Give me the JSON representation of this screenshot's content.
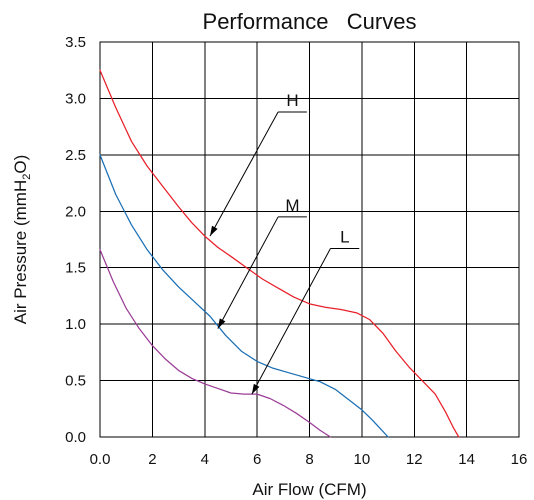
{
  "chart_data": {
    "type": "line",
    "title": "Performance   Curves",
    "xlabel": "Air Flow (CFM)",
    "ylabel": {
      "prefix": "Air Pressure (mmH",
      "subscript": "2",
      "suffix": "O)"
    },
    "xlim": [
      0,
      16
    ],
    "ylim": [
      0,
      3.5
    ],
    "x_ticks": [
      "0.0",
      "2",
      "4",
      "6",
      "8",
      "10",
      "12",
      "14",
      "16"
    ],
    "y_ticks": [
      "0.0",
      "0.5",
      "1.0",
      "1.5",
      "2.0",
      "2.5",
      "3.0",
      "3.5"
    ],
    "grid": true,
    "series": [
      {
        "name": "H",
        "color": "#e8202a",
        "x": [
          0,
          0.6,
          1.2,
          1.8,
          2.4,
          3.0,
          3.5,
          4.0,
          4.5,
          5.0,
          5.6,
          6.2,
          6.8,
          7.4,
          8.0,
          8.6,
          9.2,
          9.8,
          10.3,
          10.8,
          11.3,
          11.8,
          12.3,
          12.8,
          13.2,
          13.5,
          13.7
        ],
        "y": [
          3.25,
          2.92,
          2.62,
          2.4,
          2.22,
          2.04,
          1.9,
          1.78,
          1.68,
          1.6,
          1.5,
          1.4,
          1.32,
          1.24,
          1.18,
          1.15,
          1.13,
          1.1,
          1.04,
          0.92,
          0.76,
          0.62,
          0.5,
          0.38,
          0.22,
          0.08,
          0.0
        ]
      },
      {
        "name": "M",
        "color": "#1a6fb5",
        "x": [
          0,
          0.6,
          1.2,
          1.8,
          2.4,
          3.0,
          3.6,
          4.2,
          4.8,
          5.4,
          6.0,
          6.6,
          7.2,
          7.8,
          8.4,
          9.0,
          9.5,
          10.0,
          10.4,
          10.8,
          11.0
        ],
        "y": [
          2.5,
          2.15,
          1.88,
          1.66,
          1.48,
          1.33,
          1.2,
          1.07,
          0.9,
          0.76,
          0.67,
          0.61,
          0.57,
          0.53,
          0.49,
          0.42,
          0.33,
          0.24,
          0.15,
          0.05,
          0.0
        ]
      },
      {
        "name": "L",
        "color": "#9b3d96",
        "x": [
          0,
          0.5,
          1.0,
          1.5,
          2.0,
          2.5,
          3.0,
          3.5,
          4.0,
          4.5,
          5.0,
          5.5,
          6.0,
          6.5,
          7.0,
          7.5,
          8.0,
          8.4,
          8.8
        ],
        "y": [
          1.66,
          1.38,
          1.14,
          0.96,
          0.81,
          0.69,
          0.59,
          0.52,
          0.47,
          0.43,
          0.39,
          0.38,
          0.38,
          0.34,
          0.28,
          0.21,
          0.13,
          0.06,
          0.0
        ]
      }
    ],
    "annotations": [
      {
        "label": "H",
        "target": [
          4.2,
          1.78
        ],
        "shelf_x": [
          6.8,
          7.9
        ],
        "shelf_y": 2.88
      },
      {
        "label": "M",
        "target": [
          4.5,
          0.96
        ],
        "shelf_x": [
          6.8,
          7.9
        ],
        "shelf_y": 1.95
      },
      {
        "label": "L",
        "target": [
          5.8,
          0.38
        ],
        "shelf_x": [
          8.8,
          9.9
        ],
        "shelf_y": 1.67
      }
    ]
  }
}
